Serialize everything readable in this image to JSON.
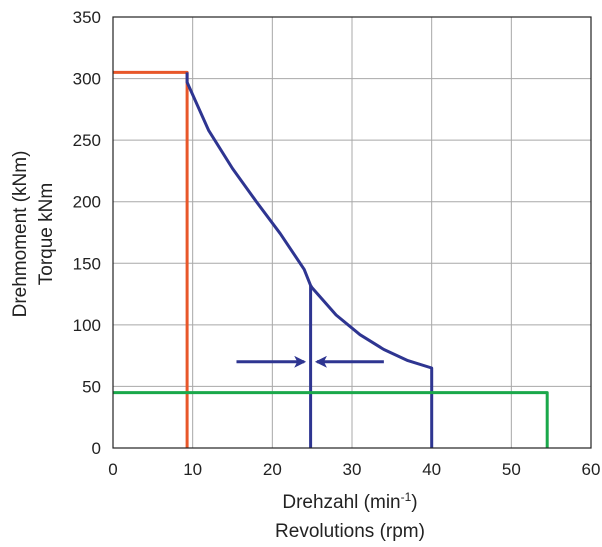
{
  "chart_data": {
    "type": "line",
    "xlim": [
      0,
      60
    ],
    "ylim": [
      0,
      350
    ],
    "x_ticks": [
      0,
      10,
      20,
      30,
      40,
      50,
      60
    ],
    "y_ticks": [
      0,
      50,
      100,
      150,
      200,
      250,
      300,
      350
    ],
    "grid": true,
    "xlabel": {
      "line1_prefix": "Drehzahl (min",
      "line1_sup": "-1",
      "line1_suffix": ")",
      "line2": "Revolutions (rpm)"
    },
    "ylabel": {
      "line1": "Drehmoment (kNm)",
      "line2": "Torque kNm"
    },
    "series": [
      {
        "color": "#e8572a",
        "points": [
          [
            0,
            305
          ],
          [
            9.3,
            305
          ],
          [
            9.3,
            0
          ]
        ]
      },
      {
        "color": "#2e3591",
        "points": [
          [
            9.3,
            305
          ],
          [
            9.3,
            297
          ],
          [
            12,
            258
          ],
          [
            15,
            227
          ],
          [
            18,
            200
          ],
          [
            21,
            174
          ],
          [
            24,
            145
          ],
          [
            24.8,
            132
          ],
          [
            25,
            130
          ],
          [
            28,
            108
          ],
          [
            31,
            92
          ],
          [
            34,
            80
          ],
          [
            37,
            71
          ],
          [
            40,
            65
          ],
          [
            40,
            0
          ]
        ]
      },
      {
        "color": "#2e3591",
        "points": [
          [
            24.8,
            132
          ],
          [
            24.8,
            0
          ]
        ]
      },
      {
        "color": "#1aa84a",
        "points": [
          [
            0,
            45
          ],
          [
            54.5,
            45
          ],
          [
            54.5,
            0
          ]
        ]
      }
    ],
    "annotations": [
      {
        "type": "arrow",
        "color": "#2e3591",
        "from": [
          15.5,
          70
        ],
        "to": [
          24,
          70
        ]
      },
      {
        "type": "arrow",
        "color": "#2e3591",
        "from": [
          34,
          70
        ],
        "to": [
          25.6,
          70
        ]
      }
    ]
  }
}
